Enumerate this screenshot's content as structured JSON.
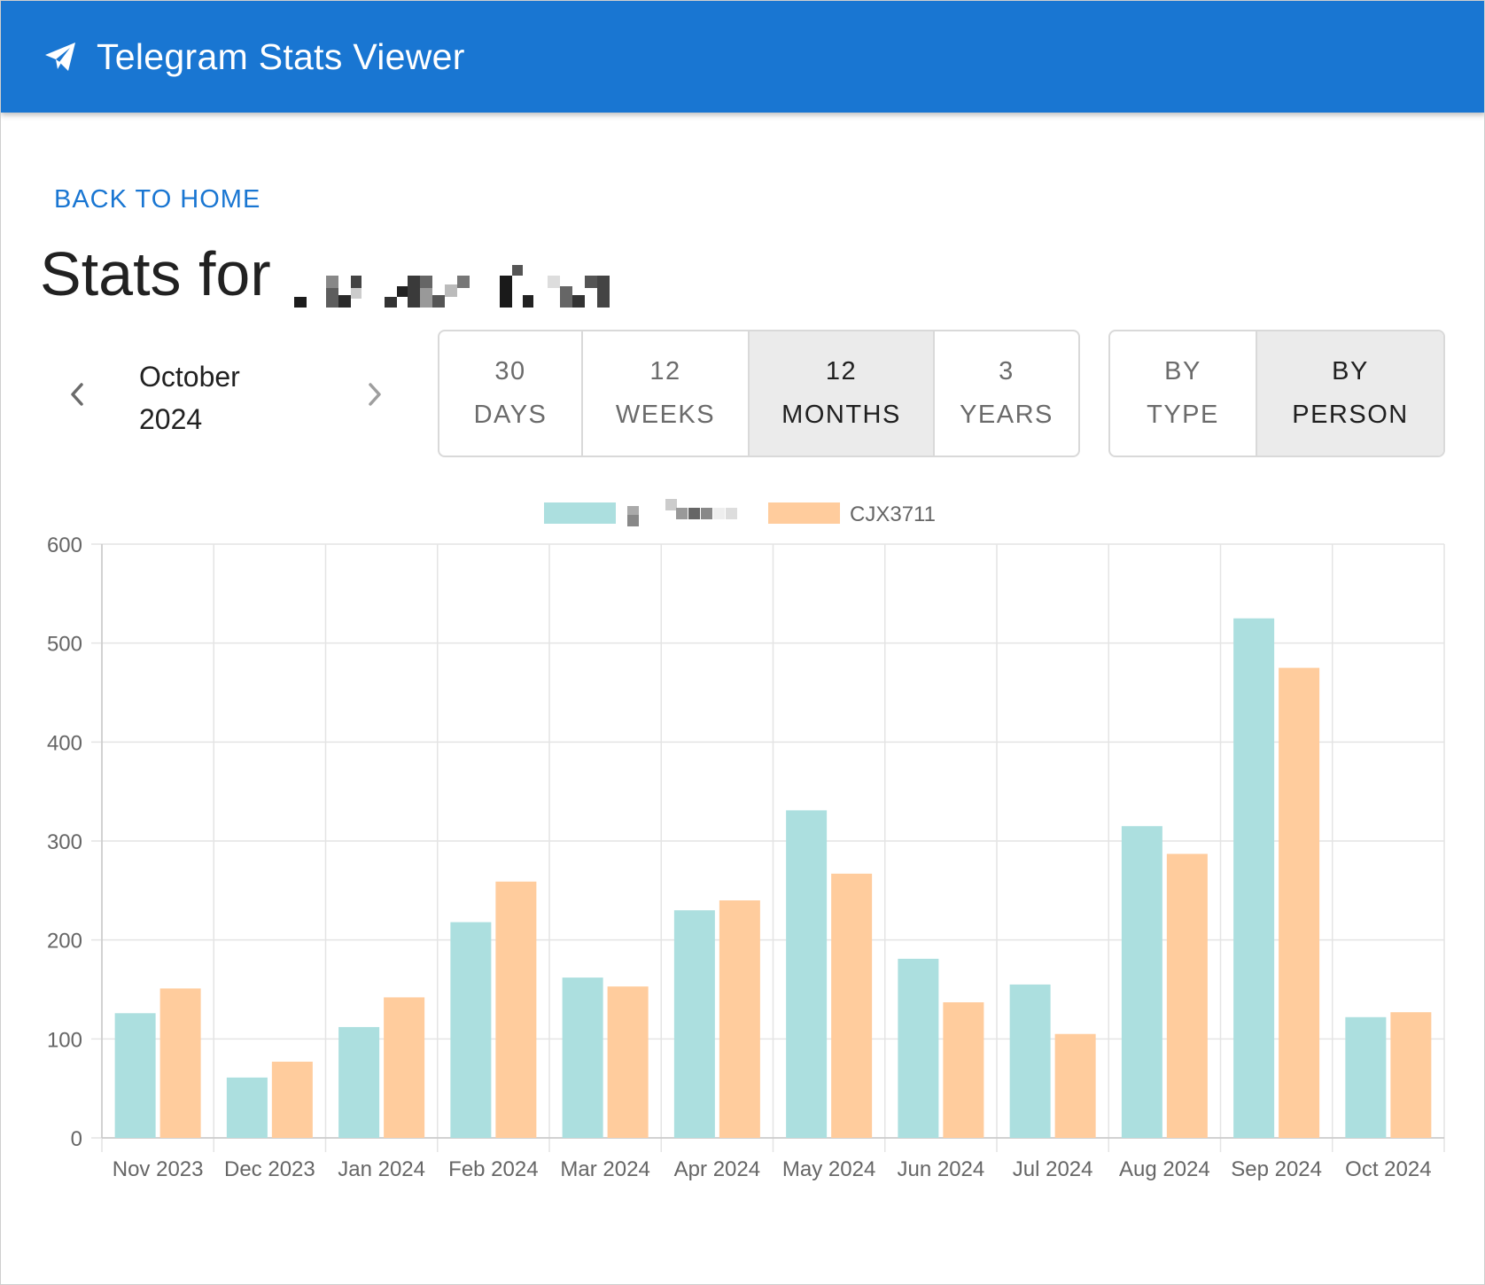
{
  "app": {
    "title": "Telegram Stats Viewer",
    "logo_icon": "telegram-send-icon",
    "accent": "#1976d2"
  },
  "nav": {
    "back_label": "BACK TO HOME"
  },
  "page": {
    "title_prefix": "Stats for",
    "title_name_redacted": true
  },
  "date_selector": {
    "month": "October",
    "year": "2024",
    "prev_icon": "chevron-left-icon",
    "next_icon": "chevron-right-icon"
  },
  "range_options": [
    {
      "line1": "30",
      "line2": "DAYS",
      "selected": false
    },
    {
      "line1": "12",
      "line2": "WEEKS",
      "selected": false
    },
    {
      "line1": "12",
      "line2": "MONTHS",
      "selected": true
    },
    {
      "line1": "3",
      "line2": "YEARS",
      "selected": false
    }
  ],
  "mode_options": [
    {
      "line1": "BY",
      "line2": "TYPE",
      "selected": false
    },
    {
      "line1": "BY",
      "line2": "PERSON",
      "selected": true
    }
  ],
  "chart_data": {
    "type": "bar",
    "categories": [
      "Nov 2023",
      "Dec 2023",
      "Jan 2024",
      "Feb 2024",
      "Mar 2024",
      "Apr 2024",
      "May 2024",
      "Jun 2024",
      "Jul 2024",
      "Aug 2024",
      "Sep 2024",
      "Oct 2024"
    ],
    "series": [
      {
        "name": "",
        "name_redacted": true,
        "color": "#acdfdf",
        "values": [
          126,
          61,
          112,
          218,
          162,
          230,
          331,
          181,
          155,
          315,
          525,
          122
        ]
      },
      {
        "name": "CJX3711",
        "color": "#ffcc9d",
        "values": [
          151,
          77,
          142,
          259,
          153,
          240,
          267,
          137,
          105,
          287,
          475,
          127
        ]
      }
    ],
    "ylim": [
      0,
      600
    ],
    "yticks": [
      0,
      100,
      200,
      300,
      400,
      500,
      600
    ],
    "grid": true,
    "legend": "top-center",
    "xlabel": "",
    "ylabel": ""
  }
}
